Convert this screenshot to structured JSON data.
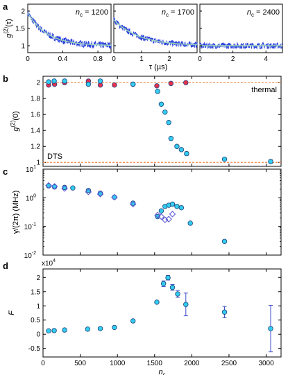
{
  "chart_data": [
    {
      "panel": "a",
      "type": "line",
      "ylabel_main": "g",
      "ylabel_sup": "(2)",
      "ylabel_tail": "(τ)",
      "xlabel": "τ (µs)",
      "ylim": [
        0.8,
        2.2
      ],
      "yticks": [
        "1",
        "1.5",
        "2"
      ],
      "yticks_vals": [
        1,
        1.5,
        2
      ],
      "subplots": [
        {
          "label_main": "n",
          "label_sub": "c",
          "label_val": " = 1200",
          "xlim": [
            0,
            0.95
          ],
          "xticks": [
            "0",
            "0.4",
            "0.8"
          ],
          "xticks_vals": [
            0,
            0.4,
            0.8
          ],
          "tau": 0.22,
          "amp": 0.95,
          "noise": 0.09
        },
        {
          "label_main": "n",
          "label_sub": "c",
          "label_val": " = 1700",
          "xlim": [
            0,
            3.0
          ],
          "xticks": [
            "0",
            "1",
            "2"
          ],
          "xticks_vals": [
            0,
            1,
            2
          ],
          "tau": 0.9,
          "amp": 0.75,
          "noise": 0.08
        },
        {
          "label_main": "n",
          "label_sub": "c",
          "label_val": " = 2400",
          "xlim": [
            0,
            5.0
          ],
          "xticks": [
            "0",
            "2",
            "4"
          ],
          "xticks_vals": [
            0,
            2,
            4
          ],
          "tau": 0.05,
          "amp": 0.04,
          "noise": 0.08
        }
      ]
    },
    {
      "panel": "b",
      "type": "scatter",
      "ylabel_main": "g",
      "ylabel_sup": "(2)",
      "ylabel_tail": "(0)",
      "ylim": [
        0.95,
        2.08
      ],
      "yticks": [
        "1",
        "1.2",
        "1.4",
        "1.6",
        "1.8",
        "2"
      ],
      "yticks_vals": [
        1,
        1.2,
        1.4,
        1.6,
        1.8,
        2
      ],
      "ref_lines": [
        {
          "y": 2.0,
          "label": "thermal"
        },
        {
          "y": 1.0,
          "label": "DTS"
        }
      ],
      "series": [
        {
          "color": "#e8314f",
          "x": [
            75,
            155,
            290,
            610,
            770,
            960,
            1210,
            1530,
            1720,
            1920
          ],
          "y": [
            1.97,
            1.98,
            2.0,
            2.02,
            1.97,
            1.97,
            1.98,
            1.96,
            1.99,
            2.0
          ]
        },
        {
          "color": "#33ccee",
          "x": [
            75,
            150,
            290,
            610,
            770,
            1210,
            1540,
            1590,
            1640,
            1690,
            1720,
            1800,
            1860,
            1930,
            2440,
            3060
          ],
          "y": [
            2.01,
            2.02,
            2.02,
            1.98,
            2.02,
            1.98,
            1.89,
            1.73,
            1.63,
            1.5,
            1.3,
            1.2,
            1.16,
            1.11,
            1.04,
            1.01
          ],
          "err": [
            0,
            0,
            0,
            0,
            0,
            0,
            0,
            0,
            0,
            0,
            0,
            0,
            0,
            0.02,
            0,
            0.02
          ]
        }
      ]
    },
    {
      "panel": "c",
      "type": "scatter",
      "ylabel": "γ/(2π) (MHz)",
      "yscale": "log",
      "ylim": [
        0.01,
        10
      ],
      "yticks_main": "10",
      "yticks_sup": [
        "-2",
        "-1",
        "0",
        "1"
      ],
      "yticks_vals": [
        0.01,
        0.1,
        1,
        10
      ],
      "series": [
        {
          "marker": "circle",
          "color": "#33ccee",
          "x": [
            75,
            155,
            290,
            400,
            610,
            770,
            960,
            1210,
            1540,
            1590,
            1640,
            1690,
            1740,
            1800,
            1860,
            1980,
            2440
          ],
          "y": [
            2.6,
            2.4,
            2.3,
            2.2,
            1.8,
            1.45,
            1.05,
            0.65,
            0.22,
            0.35,
            0.5,
            0.55,
            0.6,
            0.5,
            0.45,
            0.13,
            0.03
          ]
        },
        {
          "marker": "diamond",
          "color": "#5b5bd6",
          "x": [
            75,
            155,
            290,
            610,
            770,
            960,
            1210,
            1540,
            1590,
            1640,
            1690,
            1740
          ],
          "y": [
            2.7,
            2.5,
            2.1,
            1.6,
            1.35,
            1.05,
            0.6,
            0.25,
            0.22,
            0.17,
            0.18,
            0.27
          ]
        }
      ]
    },
    {
      "panel": "d",
      "type": "scatter",
      "ylabel": "F",
      "y_multiplier_main": "x10",
      "y_multiplier_sup": "4",
      "xlabel_main": "n",
      "xlabel_sub": "c",
      "xlim": [
        0,
        3200
      ],
      "xticks": [
        "0",
        "500",
        "1000",
        "1500",
        "2000",
        "2500",
        "3000"
      ],
      "xticks_vals": [
        0,
        500,
        1000,
        1500,
        2000,
        2500,
        3000
      ],
      "ylim": [
        -0.8,
        2.3
      ],
      "yticks": [
        "-0.5",
        "0",
        "0.5",
        "1",
        "1.5",
        "2"
      ],
      "yticks_vals": [
        -0.5,
        0,
        0.5,
        1,
        1.5,
        2
      ],
      "series": [
        {
          "color": "#33ccee",
          "x": [
            75,
            150,
            290,
            600,
            770,
            960,
            1210,
            1530,
            1620,
            1680,
            1740,
            1810,
            1920,
            2440,
            3060
          ],
          "y": [
            0.12,
            0.13,
            0.15,
            0.18,
            0.2,
            0.24,
            0.47,
            1.13,
            1.78,
            1.99,
            1.65,
            1.42,
            1.05,
            0.78,
            0.2
          ],
          "err": [
            0,
            0,
            0,
            0,
            0,
            0,
            0,
            0,
            0.1,
            0.08,
            0.1,
            0.12,
            0.4,
            0.2,
            0.82
          ]
        }
      ]
    }
  ]
}
